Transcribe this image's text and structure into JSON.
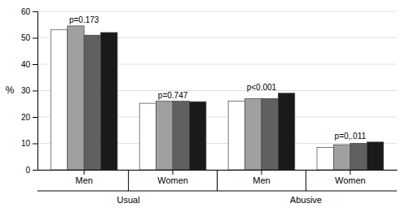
{
  "chart_data": {
    "type": "bar",
    "categories": [
      "Men",
      "Women",
      "Men",
      "Women"
    ],
    "category_groups": [
      "Usual",
      "Usual",
      "Abusive",
      "Abusive"
    ],
    "series": [
      {
        "color": "#ffffff",
        "values": [
          53.0,
          25.2,
          26.0,
          8.5
        ]
      },
      {
        "color": "#a0a0a0",
        "values": [
          54.5,
          26.0,
          27.0,
          9.5
        ]
      },
      {
        "color": "#606060",
        "values": [
          51.0,
          26.0,
          27.0,
          10.0
        ]
      },
      {
        "color": "#1a1a1a",
        "values": [
          52.0,
          25.8,
          29.0,
          10.5
        ]
      }
    ],
    "annotations": [
      "p=0.173",
      "p=0.747",
      "p<0.001",
      "p=0,.011"
    ],
    "y_label": "%",
    "ylim": [
      0,
      60
    ],
    "yticks": [
      0,
      10,
      20,
      30,
      40,
      50,
      60
    ],
    "grid": true
  }
}
